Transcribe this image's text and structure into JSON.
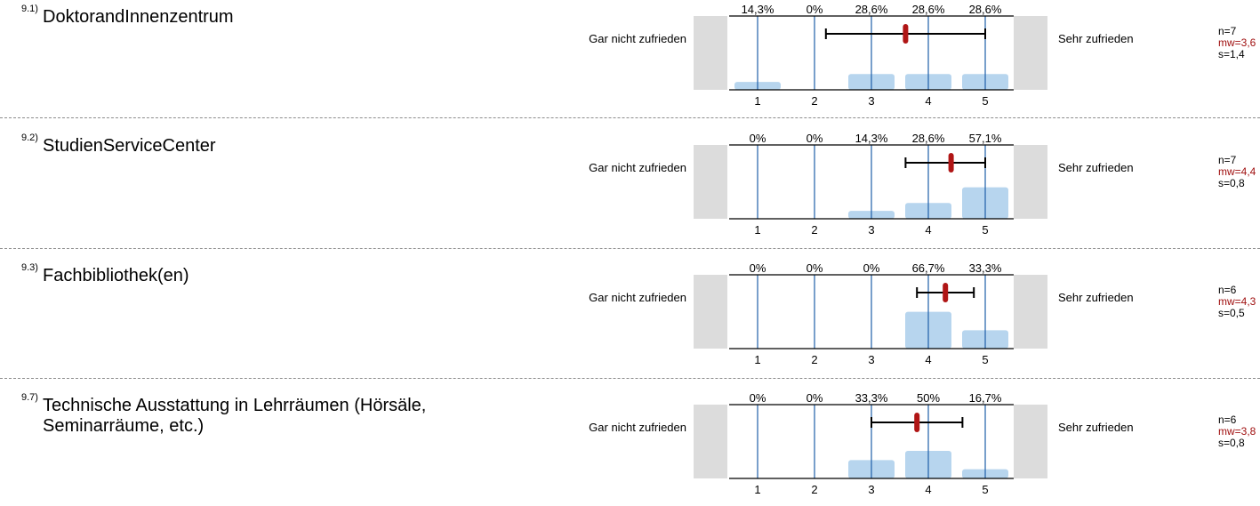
{
  "left_label": "Gar nicht zufrieden",
  "right_label": "Sehr zufrieden",
  "colors": {
    "bar": "#b7d5ee",
    "grid": "#1f5fa8",
    "gray": "#dcdcdc",
    "mean": "#b01515",
    "mw_text": "#a01010"
  },
  "chart_data": [
    {
      "type": "bar",
      "number": "9.1)",
      "title": "DoktorandInnenzentrum",
      "categories": [
        "1",
        "2",
        "3",
        "4",
        "5"
      ],
      "values": [
        14.3,
        0,
        28.6,
        28.6,
        28.6
      ],
      "percent_labels": [
        "14,3%",
        "0%",
        "28,6%",
        "28,6%",
        "28,6%"
      ],
      "mean": 3.6,
      "sd": 1.4,
      "n_text": "n=7",
      "mw_text": "mw=3,6",
      "s_text": "s=1,4"
    },
    {
      "type": "bar",
      "number": "9.2)",
      "title": "StudienServiceCenter",
      "categories": [
        "1",
        "2",
        "3",
        "4",
        "5"
      ],
      "values": [
        0,
        0,
        14.3,
        28.6,
        57.1
      ],
      "percent_labels": [
        "0%",
        "0%",
        "14,3%",
        "28,6%",
        "57,1%"
      ],
      "mean": 4.4,
      "sd": 0.8,
      "n_text": "n=7",
      "mw_text": "mw=4,4",
      "s_text": "s=0,8"
    },
    {
      "type": "bar",
      "number": "9.3)",
      "title": "Fachbibliothek(en)",
      "categories": [
        "1",
        "2",
        "3",
        "4",
        "5"
      ],
      "values": [
        0,
        0,
        0,
        66.7,
        33.3
      ],
      "percent_labels": [
        "0%",
        "0%",
        "0%",
        "66,7%",
        "33,3%"
      ],
      "mean": 4.3,
      "sd": 0.5,
      "n_text": "n=6",
      "mw_text": "mw=4,3",
      "s_text": "s=0,5"
    },
    {
      "type": "bar",
      "number": "9.7)",
      "title": "Technische Ausstattung in Lehrräumen (Hörsäle, Seminarräume, etc.)",
      "categories": [
        "1",
        "2",
        "3",
        "4",
        "5"
      ],
      "values": [
        0,
        0,
        33.3,
        50,
        16.7
      ],
      "percent_labels": [
        "0%",
        "0%",
        "33,3%",
        "50%",
        "16,7%"
      ],
      "mean": 3.8,
      "sd": 0.8,
      "n_text": "n=6",
      "mw_text": "mw=3,8",
      "s_text": "s=0,8"
    }
  ]
}
